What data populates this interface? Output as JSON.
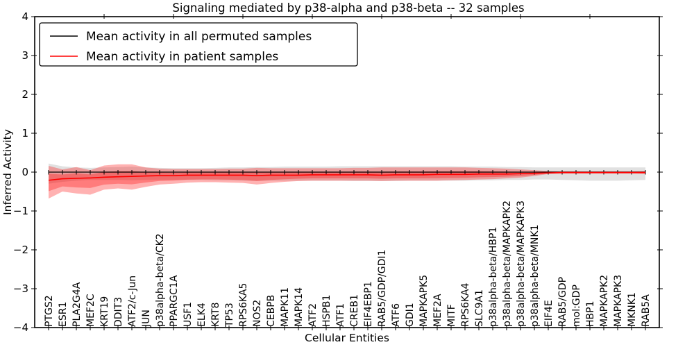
{
  "chart_data": {
    "type": "line",
    "title": "Signaling mediated by p38-alpha and p38-beta -- 32 samples",
    "xlabel": "Cellular Entities",
    "ylabel": "Inferred Activity",
    "ylim": [
      -4,
      4
    ],
    "yticks": [
      4,
      3,
      2,
      1,
      0,
      -1,
      -2,
      -3,
      -4
    ],
    "grid": false,
    "legend_position": "upper left",
    "colors": {
      "permuted_line": "#000000",
      "patient_line": "#ff0000",
      "permuted_band": "#aaaaaa",
      "patient_band": "#ff0000",
      "legend_border": "#000000",
      "legend_background": "#ffffff"
    },
    "categories": [
      "PTGS2",
      "ESR1",
      "PLA2G4A",
      "MEF2C",
      "KRT19",
      "DDIT3",
      "ATF2/c-Jun",
      "JUN",
      "p38alpha-beta/CK2",
      "PPARGC1A",
      "USF1",
      "ELK4",
      "KRT8",
      "TP53",
      "RPS6KA5",
      "NOS2",
      "CEBPB",
      "MAPK11",
      "MAPK14",
      "ATF2",
      "HSPB1",
      "ATF1",
      "CREB1",
      "EIF4EBP1",
      "RAB5/GDP/GDI1",
      "ATF6",
      "GDI1",
      "MAPKAPK5",
      "MEF2A",
      "MITF",
      "RPS6KA4",
      "SLC9A1",
      "p38alpha-beta/HBP1",
      "p38alpha-beta/MAPKAPK2",
      "p38alpha-beta/MAPKAPK3",
      "p38alpha-beta/MNK1",
      "EIF4E",
      "RAB5/GDP",
      "mol:GDP",
      "HBP1",
      "MAPKAPK2",
      "MAPKAPK3",
      "MKNK1",
      "RAB5A"
    ],
    "series": [
      {
        "name": "Mean activity in all permuted samples",
        "color": "#000000",
        "mean": [
          0,
          0,
          0,
          0,
          0,
          0,
          0,
          0,
          0,
          0,
          0,
          0,
          0,
          0,
          0,
          0,
          0,
          0,
          0,
          0,
          0,
          0,
          0,
          0,
          0,
          0,
          0,
          0,
          0,
          0,
          0,
          0,
          0,
          0,
          0,
          0,
          0,
          0,
          0,
          0,
          0,
          0,
          0,
          0
        ],
        "band_upper": [
          0.22,
          0.15,
          0.12,
          0.11,
          0.12,
          0.13,
          0.14,
          0.12,
          0.11,
          0.1,
          0.1,
          0.1,
          0.11,
          0.12,
          0.12,
          0.13,
          0.13,
          0.14,
          0.14,
          0.14,
          0.14,
          0.15,
          0.15,
          0.15,
          0.15,
          0.15,
          0.15,
          0.15,
          0.15,
          0.15,
          0.14,
          0.14,
          0.14,
          0.13,
          0.13,
          0.12,
          0.12,
          0.12,
          0.12,
          0.12,
          0.12,
          0.12,
          0.12,
          0.12
        ],
        "band_lower": [
          -0.3,
          -0.25,
          -0.22,
          -0.2,
          -0.2,
          -0.2,
          -0.21,
          -0.2,
          -0.2,
          -0.2,
          -0.2,
          -0.2,
          -0.21,
          -0.21,
          -0.22,
          -0.23,
          -0.22,
          -0.22,
          -0.22,
          -0.22,
          -0.22,
          -0.22,
          -0.23,
          -0.23,
          -0.23,
          -0.23,
          -0.22,
          -0.22,
          -0.22,
          -0.22,
          -0.22,
          -0.21,
          -0.21,
          -0.2,
          -0.2,
          -0.19,
          -0.19,
          -0.2,
          -0.21,
          -0.22,
          -0.22,
          -0.22,
          -0.21,
          -0.2
        ]
      },
      {
        "name": "Mean activity in patient samples",
        "color": "#ff0000",
        "mean": [
          -0.21,
          -0.17,
          -0.16,
          -0.15,
          -0.13,
          -0.12,
          -0.11,
          -0.1,
          -0.09,
          -0.09,
          -0.08,
          -0.08,
          -0.08,
          -0.08,
          -0.08,
          -0.09,
          -0.08,
          -0.08,
          -0.08,
          -0.07,
          -0.07,
          -0.07,
          -0.07,
          -0.07,
          -0.08,
          -0.07,
          -0.07,
          -0.07,
          -0.06,
          -0.06,
          -0.06,
          -0.05,
          -0.05,
          -0.05,
          -0.04,
          -0.03,
          -0.02,
          -0.01,
          -0.01,
          -0.01,
          -0.01,
          -0.01,
          -0.01,
          -0.01
        ],
        "band_upper": [
          0.16,
          0.07,
          0.13,
          0.05,
          0.17,
          0.2,
          0.2,
          0.12,
          0.09,
          0.08,
          0.08,
          0.08,
          0.08,
          0.09,
          0.09,
          0.11,
          0.1,
          0.1,
          0.1,
          0.1,
          0.1,
          0.1,
          0.11,
          0.11,
          0.12,
          0.12,
          0.12,
          0.12,
          0.12,
          0.12,
          0.12,
          0.11,
          0.1,
          0.09,
          0.07,
          0.05,
          0.03,
          0.02,
          0.02,
          0.02,
          0.02,
          0.02,
          0.02,
          0.03
        ],
        "band_lower": [
          -0.68,
          -0.5,
          -0.55,
          -0.58,
          -0.45,
          -0.42,
          -0.45,
          -0.38,
          -0.32,
          -0.3,
          -0.27,
          -0.26,
          -0.26,
          -0.27,
          -0.28,
          -0.32,
          -0.28,
          -0.25,
          -0.23,
          -0.22,
          -0.22,
          -0.22,
          -0.22,
          -0.22,
          -0.23,
          -0.22,
          -0.22,
          -0.22,
          -0.22,
          -0.21,
          -0.2,
          -0.19,
          -0.18,
          -0.16,
          -0.14,
          -0.1,
          -0.05,
          -0.04,
          -0.04,
          -0.04,
          -0.04,
          -0.04,
          -0.04,
          -0.05
        ]
      }
    ]
  }
}
